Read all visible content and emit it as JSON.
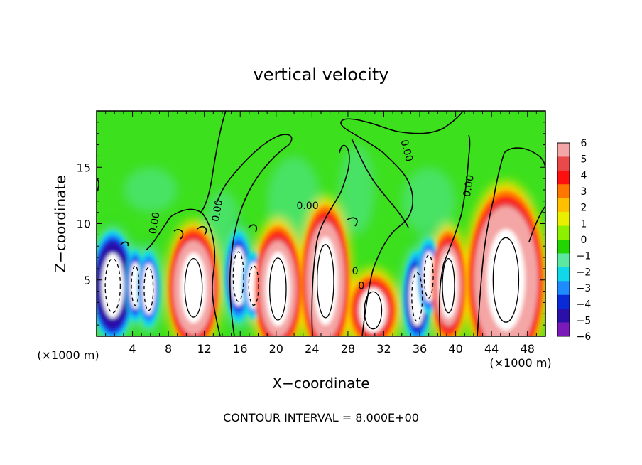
{
  "chart_data": {
    "type": "heatmap",
    "title": "vertical velocity",
    "xlabel": "X−coordinate",
    "ylabel": "Z−coordinate",
    "x_unit_left": "(×1000 m)",
    "x_unit_right": "(×1000 m)",
    "footer": "CONTOUR INTERVAL = 8.000E+00",
    "xlim": [
      0,
      50
    ],
    "ylim": [
      0,
      20
    ],
    "x_ticks": [
      {
        "value": 4,
        "label": "4"
      },
      {
        "value": 8,
        "label": "8"
      },
      {
        "value": 12,
        "label": "12"
      },
      {
        "value": 16,
        "label": "16"
      },
      {
        "value": 20,
        "label": "20"
      },
      {
        "value": 24,
        "label": "24"
      },
      {
        "value": 28,
        "label": "28"
      },
      {
        "value": 32,
        "label": "32"
      },
      {
        "value": 36,
        "label": "36"
      },
      {
        "value": 40,
        "label": "40"
      },
      {
        "value": 44,
        "label": "44"
      },
      {
        "value": 48,
        "label": "48"
      }
    ],
    "y_ticks": [
      {
        "value": 5,
        "label": "5"
      },
      {
        "value": 10,
        "label": "10"
      },
      {
        "value": 15,
        "label": "15"
      }
    ],
    "colorbar": {
      "labels": [
        "6",
        "5",
        "4",
        "3",
        "2",
        "1",
        "0",
        "−1",
        "−2",
        "−3",
        "−4",
        "−5",
        "−6"
      ],
      "colors": [
        "#f4a6a6",
        "#e84a4a",
        "#ff1010",
        "#ff7700",
        "#ffc000",
        "#e8f000",
        "#8cf000",
        "#22d400",
        "#5ce8a0",
        "#10d8e8",
        "#1e8cff",
        "#0a2ad8",
        "#2a10a8",
        "#7a1ab8"
      ]
    },
    "contour_labels": [
      {
        "text": "0.00",
        "x": 6.8,
        "z": 10.0,
        "angle": -80
      },
      {
        "text": "0.00",
        "x": 13.8,
        "z": 11.1,
        "angle": -80
      },
      {
        "text": "0.00",
        "x": 23.5,
        "z": 11.3,
        "angle": 0
      },
      {
        "text": "0.00",
        "x": 34.2,
        "z": 16.4,
        "angle": 75
      },
      {
        "text": "0.00",
        "x": 41.8,
        "z": 13.3,
        "angle": -80
      },
      {
        "text": "0",
        "x": 28.8,
        "z": 5.5,
        "angle": 0
      },
      {
        "text": "0",
        "x": 29.5,
        "z": 4.2,
        "angle": 0
      }
    ],
    "updraft_cores": [
      {
        "x": 10.8,
        "z": 4.3,
        "rx": 2.3,
        "rz": 5.2,
        "w": 13
      },
      {
        "x": 20.2,
        "z": 4.2,
        "rx": 2.2,
        "rz": 5.5,
        "w": 12
      },
      {
        "x": 25.5,
        "z": 4.9,
        "rx": 2.2,
        "rz": 6.5,
        "w": 13
      },
      {
        "x": 30.8,
        "z": 2.3,
        "rx": 2.3,
        "rz": 3.3,
        "w": 8
      },
      {
        "x": 39.2,
        "z": 4.5,
        "rx": 1.6,
        "rz": 4.8,
        "w": 11
      },
      {
        "x": 45.6,
        "z": 5.0,
        "rx": 3.4,
        "rz": 7.5,
        "w": 16
      }
    ],
    "downdraft_cores": [
      {
        "x": 1.8,
        "z": 4.5,
        "rx": 2.0,
        "rz": 4.8,
        "w": -13
      },
      {
        "x": 4.3,
        "z": 4.5,
        "rx": 1.0,
        "rz": 3.5,
        "w": -8
      },
      {
        "x": 5.8,
        "z": 4.2,
        "rx": 1.2,
        "rz": 3.8,
        "w": -7
      },
      {
        "x": 15.8,
        "z": 5.3,
        "rx": 1.4,
        "rz": 4.4,
        "w": -8
      },
      {
        "x": 17.5,
        "z": 4.5,
        "rx": 1.3,
        "rz": 3.5,
        "w": -6
      },
      {
        "x": 35.7,
        "z": 3.5,
        "rx": 1.4,
        "rz": 4.3,
        "w": -9
      },
      {
        "x": 37.0,
        "z": 5.3,
        "rx": 1.2,
        "rz": 3.8,
        "w": -7
      }
    ]
  }
}
